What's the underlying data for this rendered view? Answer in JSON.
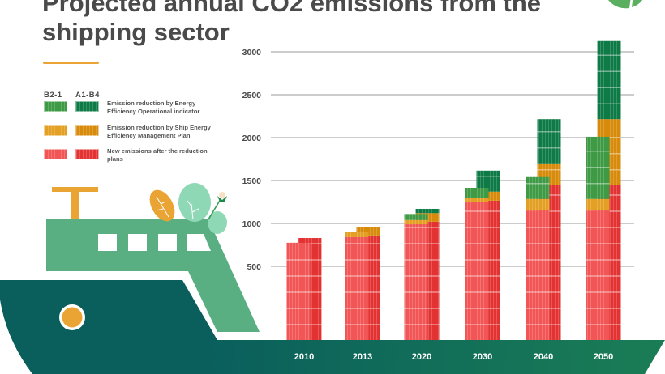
{
  "title": "Projected annual CO2 emissions from the shipping sector",
  "legend": {
    "scenario_headers": [
      "B2-1",
      "A1-B4"
    ],
    "items": [
      {
        "label": "Emission reduction by Energy Efficiency Operational indicator",
        "colors": [
          "#3f9a45",
          "#0e7a45"
        ]
      },
      {
        "label": "Emission reduction by Ship Energy Efficiency Management Plan",
        "colors": [
          "#e3a024",
          "#d88a0b"
        ]
      },
      {
        "label": "New emissions after the reduction plans",
        "colors": [
          "#f25555",
          "#e23232"
        ]
      }
    ]
  },
  "colors": {
    "title": "#4a4a4a",
    "accent": "#eaa434",
    "gridline": "#9a9a9a",
    "hull": "#0a5f5c",
    "deck": "#157459",
    "cabin": "#5aaf82",
    "leaf_light": "#8fd8b6",
    "leaf_orange": "#eaa434"
  },
  "chart_data": {
    "type": "bar",
    "title": "Projected annual CO2 emissions from the shipping sector",
    "xlabel": "",
    "ylabel": "",
    "categories": [
      "2010",
      "2013",
      "2020",
      "2030",
      "2040",
      "2050"
    ],
    "yticks": [
      500,
      1000,
      1500,
      2000,
      2500,
      3000
    ],
    "ylim": [
      0,
      3100
    ],
    "grid": true,
    "stacked": true,
    "legend_position": "top-left",
    "scenarios": [
      {
        "name": "B2-1",
        "series": [
          {
            "name": "New emissions after the reduction plans",
            "values": [
              775,
              840,
              990,
              1245,
              1150,
              1150
            ]
          },
          {
            "name": "Emission reduction by Ship Energy Efficiency Management Plan",
            "values": [
              0,
              65,
              50,
              55,
              135,
              135
            ]
          },
          {
            "name": "Emission reduction by Energy Efficiency Operational indicator",
            "values": [
              0,
              0,
              70,
              115,
              255,
              725
            ]
          }
        ],
        "totals": [
          775,
          905,
          1110,
          1415,
          1540,
          2010
        ]
      },
      {
        "name": "A1-B4",
        "series": [
          {
            "name": "New emissions after the reduction plans",
            "values": [
              830,
              860,
              1020,
              1265,
              1445,
              1445
            ]
          },
          {
            "name": "Emission reduction by Ship Energy Efficiency Management Plan",
            "values": [
              0,
              100,
              100,
              105,
              255,
              770
            ]
          },
          {
            "name": "Emission reduction by Energy Efficiency Operational indicator",
            "values": [
              0,
              0,
              50,
              245,
              515,
              910
            ]
          }
        ],
        "totals": [
          830,
          960,
          1170,
          1615,
          2215,
          3125
        ]
      }
    ]
  }
}
